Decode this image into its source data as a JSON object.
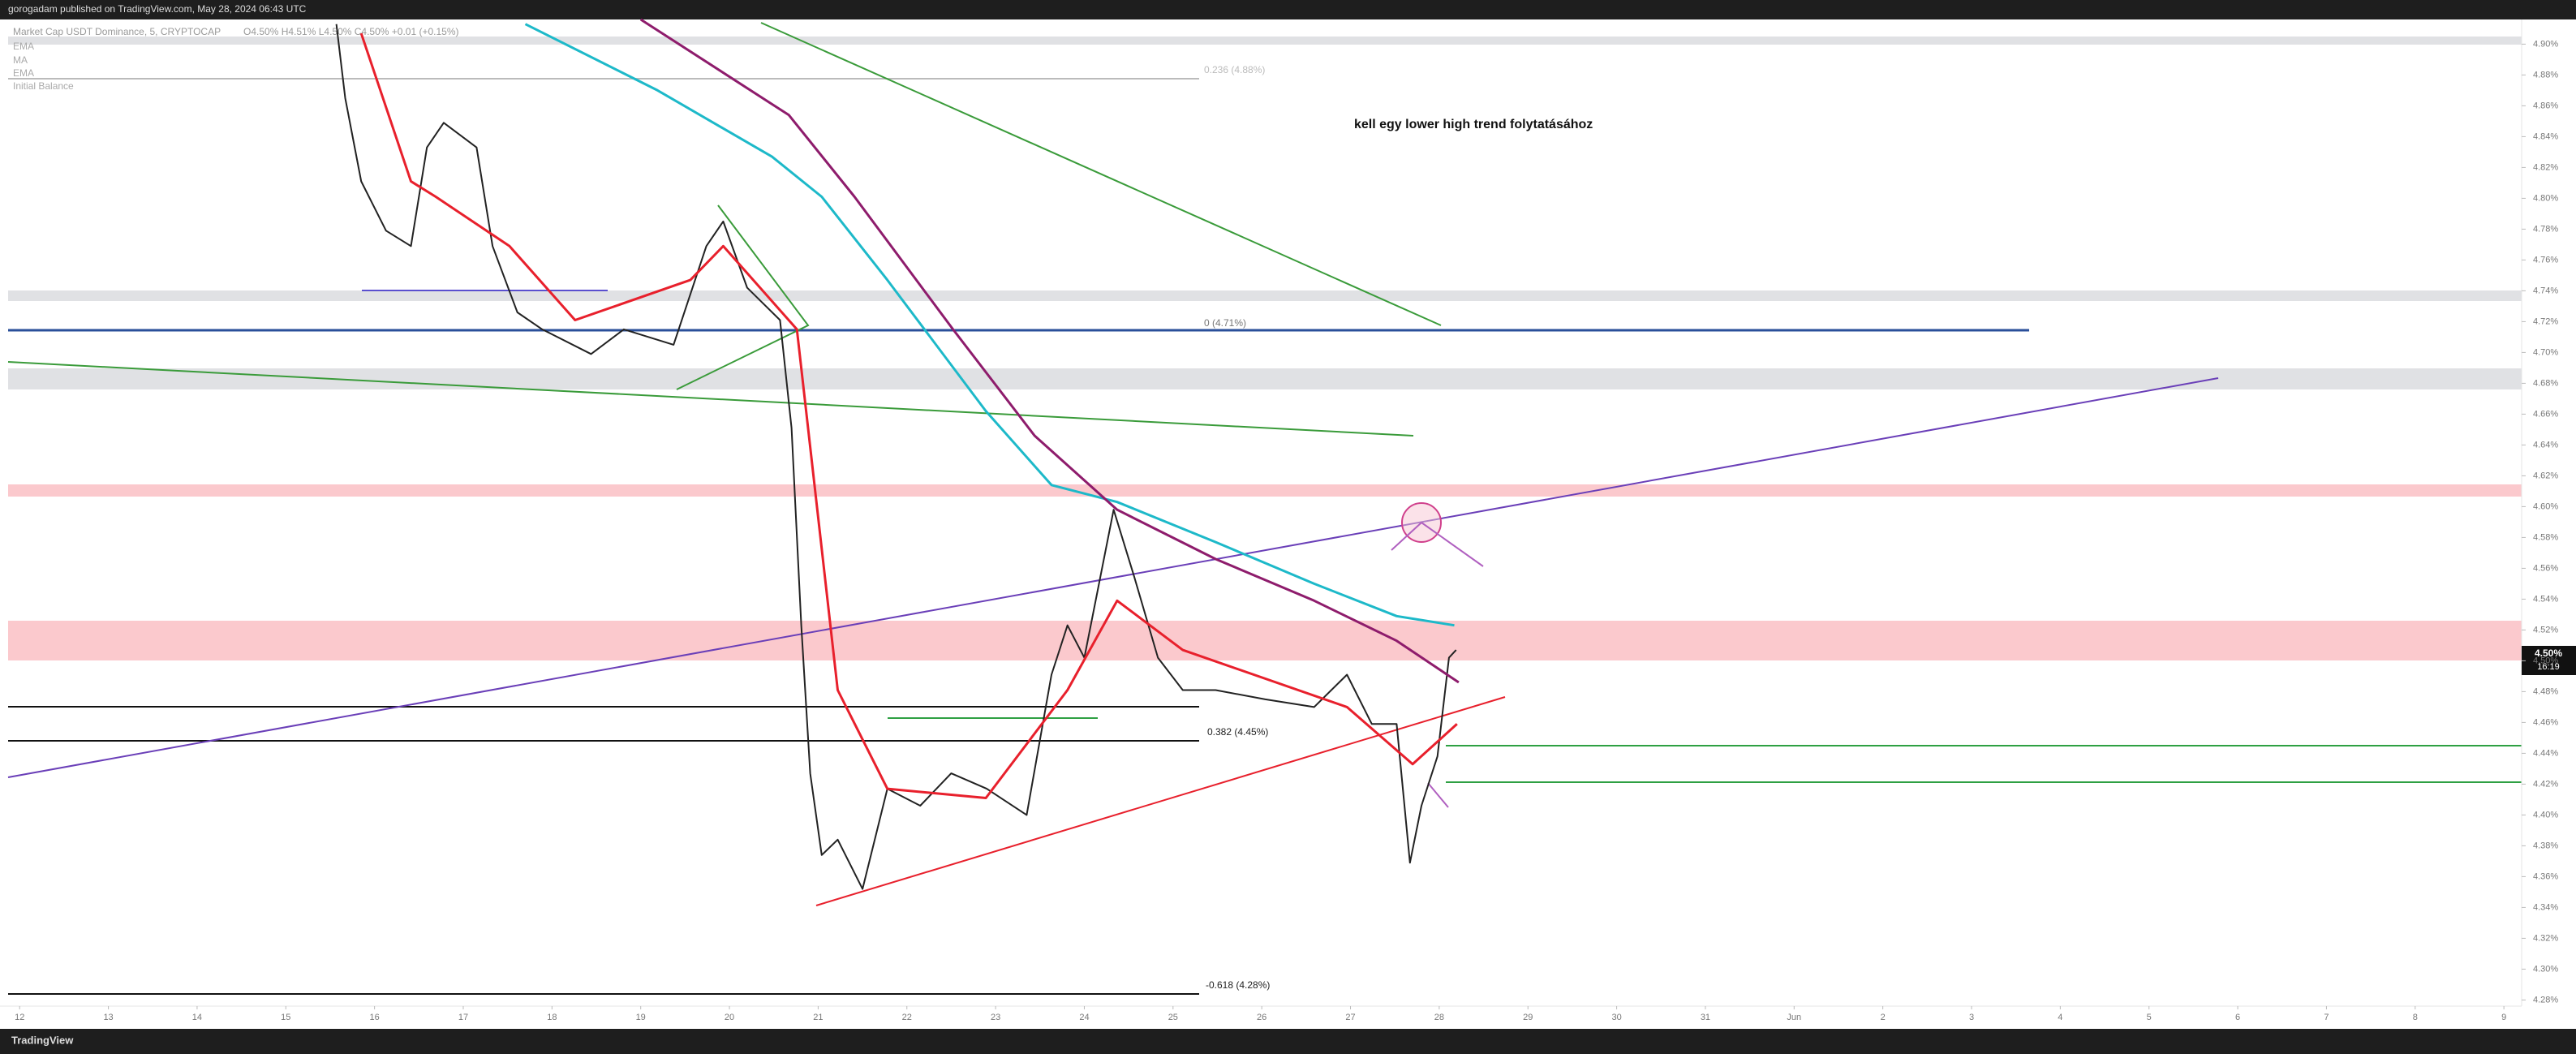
{
  "header": "gorogadam published on TradingView.com, May 28, 2024 06:43 UTC",
  "footer": "TradingView",
  "chart_data": {
    "type": "line",
    "title": "Market Cap USDT Dominance, 5, CRYPTOCAP",
    "ohlc_text": "O4.50% H4.51% L4.50% C4.50% +0.01 (+0.15%)",
    "extra_legend": "Initial Balance",
    "annotations": {
      "note": "kell egy lower high trend folytatásához",
      "fib_0236": "0.236 (4.88%)",
      "fib_0": "0 (4.71%)",
      "fib_0382": "0.382 (4.45%)",
      "fib_m0618": "-0.618 (4.28%)",
      "price_label": "4.50%",
      "countdown": "16:19"
    },
    "xlim": [
      -0.13,
      28.2
    ],
    "ylim": [
      4.276,
      4.916
    ],
    "grid": false,
    "xticks": [
      {
        "value": 0,
        "label": "12"
      },
      {
        "value": 1,
        "label": "13"
      },
      {
        "value": 2,
        "label": "14"
      },
      {
        "value": 3,
        "label": "15"
      },
      {
        "value": 4,
        "label": "16"
      },
      {
        "value": 5,
        "label": "17"
      },
      {
        "value": 6,
        "label": "18"
      },
      {
        "value": 7,
        "label": "19"
      },
      {
        "value": 8,
        "label": "20"
      },
      {
        "value": 9,
        "label": "21"
      },
      {
        "value": 10,
        "label": "22"
      },
      {
        "value": 11,
        "label": "23"
      },
      {
        "value": 12,
        "label": "24"
      },
      {
        "value": 13,
        "label": "25"
      },
      {
        "value": 14,
        "label": "26"
      },
      {
        "value": 15,
        "label": "27"
      },
      {
        "value": 16,
        "label": "28"
      },
      {
        "value": 17,
        "label": "29"
      },
      {
        "value": 18,
        "label": "30"
      },
      {
        "value": 19,
        "label": "31"
      },
      {
        "value": 20,
        "label": "Jun"
      },
      {
        "value": 21,
        "label": "2"
      },
      {
        "value": 22,
        "label": "3"
      },
      {
        "value": 23,
        "label": "4"
      },
      {
        "value": 24,
        "label": "5"
      },
      {
        "value": 25,
        "label": "6"
      },
      {
        "value": 26,
        "label": "7"
      },
      {
        "value": 27,
        "label": "8"
      },
      {
        "value": 28,
        "label": "9"
      }
    ],
    "yticks": [
      {
        "value": 4.28,
        "label": "4.28%"
      },
      {
        "value": 4.3,
        "label": "4.30%"
      },
      {
        "value": 4.32,
        "label": "4.32%"
      },
      {
        "value": 4.34,
        "label": "4.34%"
      },
      {
        "value": 4.36,
        "label": "4.36%"
      },
      {
        "value": 4.38,
        "label": "4.38%"
      },
      {
        "value": 4.4,
        "label": "4.40%"
      },
      {
        "value": 4.42,
        "label": "4.42%"
      },
      {
        "value": 4.44,
        "label": "4.44%"
      },
      {
        "value": 4.46,
        "label": "4.46%"
      },
      {
        "value": 4.48,
        "label": "4.48%"
      },
      {
        "value": 4.5,
        "label": "4.50%"
      },
      {
        "value": 4.52,
        "label": "4.52%"
      },
      {
        "value": 4.54,
        "label": "4.54%"
      },
      {
        "value": 4.56,
        "label": "4.56%"
      },
      {
        "value": 4.58,
        "label": "4.58%"
      },
      {
        "value": 4.6,
        "label": "4.60%"
      },
      {
        "value": 4.62,
        "label": "4.62%"
      },
      {
        "value": 4.64,
        "label": "4.64%"
      },
      {
        "value": 4.66,
        "label": "4.66%"
      },
      {
        "value": 4.68,
        "label": "4.68%"
      },
      {
        "value": 4.7,
        "label": "4.70%"
      },
      {
        "value": 4.72,
        "label": "4.72%"
      },
      {
        "value": 4.74,
        "label": "4.74%"
      },
      {
        "value": 4.76,
        "label": "4.76%"
      },
      {
        "value": 4.78,
        "label": "4.78%"
      },
      {
        "value": 4.8,
        "label": "4.80%"
      },
      {
        "value": 4.82,
        "label": "4.82%"
      },
      {
        "value": 4.84,
        "label": "4.84%"
      },
      {
        "value": 4.86,
        "label": "4.86%"
      },
      {
        "value": 4.88,
        "label": "4.88%"
      },
      {
        "value": 4.9,
        "label": "4.90%"
      }
    ],
    "series": [
      {
        "color": "#222222",
        "x": [
          3.57,
          3.67,
          3.85,
          4.13,
          4.41,
          4.59,
          4.78,
          5.15,
          5.33,
          5.61,
          5.89,
          6.44,
          6.81,
          7.37,
          7.74,
          7.93,
          8.2,
          8.57,
          8.7,
          8.81,
          8.91,
          9.04,
          9.22,
          9.5,
          9.78,
          10.15,
          10.5,
          10.9,
          11.35,
          11.63,
          11.81,
          12.0,
          12.33,
          12.56,
          12.83,
          13.11,
          13.48,
          14.04,
          14.59,
          14.96,
          15.24,
          15.52,
          15.67,
          15.8,
          15.98,
          16.11,
          16.19
        ],
        "values": [
          4.913,
          4.865,
          4.811,
          4.779,
          4.769,
          4.833,
          4.849,
          4.833,
          4.769,
          4.726,
          4.715,
          4.699,
          4.715,
          4.705,
          4.769,
          4.785,
          4.742,
          4.721,
          4.651,
          4.523,
          4.427,
          4.374,
          4.384,
          4.352,
          4.417,
          4.406,
          4.427,
          4.417,
          4.4,
          4.491,
          4.523,
          4.502,
          4.598,
          4.555,
          4.502,
          4.481,
          4.481,
          4.475,
          4.47,
          4.491,
          4.459,
          4.459,
          4.369,
          4.406,
          4.438,
          4.502,
          4.507
        ]
      },
      {
        "name": "EMA",
        "color": "#e8202c",
        "x": [
          3.85,
          4.41,
          4.69,
          5.52,
          6.26,
          7.56,
          7.93,
          8.76,
          9.22,
          9.78,
          10.89,
          11.81,
          12.37,
          13.11,
          14.96,
          15.7,
          16.2
        ],
        "values": [
          4.907,
          4.811,
          4.801,
          4.769,
          4.721,
          4.747,
          4.769,
          4.715,
          4.481,
          4.417,
          4.411,
          4.481,
          4.539,
          4.507,
          4.47,
          4.433,
          4.459
        ]
      },
      {
        "name": "MA",
        "color": "#1db9c9",
        "x": [
          5.7,
          7.19,
          8.48,
          9.04,
          9.78,
          10.89,
          11.63,
          12.37,
          13.48,
          14.59,
          15.52,
          16.17
        ],
        "values": [
          4.913,
          4.87,
          4.827,
          4.801,
          4.747,
          4.662,
          4.614,
          4.603,
          4.577,
          4.55,
          4.529,
          4.523
        ]
      },
      {
        "name": "EMA",
        "color": "#8e1c6c",
        "x": [
          7.0,
          8.67,
          9.41,
          10.52,
          11.44,
          12.37,
          13.48,
          14.59,
          15.52,
          16.22
        ],
        "values": [
          4.916,
          4.854,
          4.801,
          4.715,
          4.646,
          4.598,
          4.566,
          4.539,
          4.513,
          4.486
        ]
      }
    ]
  }
}
